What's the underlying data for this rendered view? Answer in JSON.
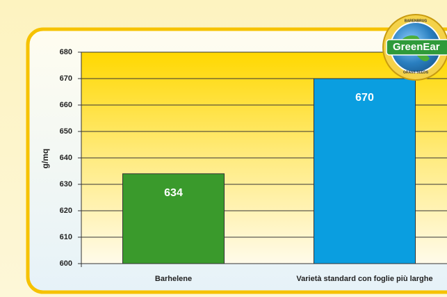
{
  "chart_data": {
    "type": "bar",
    "y_label": "g/mq",
    "categories": [
      "Barhelene",
      "Varietà standard con foglie più larghe"
    ],
    "values": [
      634,
      670
    ],
    "colors": [
      "#3a9a2c",
      "#0a9ee0"
    ],
    "ylim": [
      600,
      680
    ],
    "yticks": [
      600,
      610,
      620,
      630,
      640,
      650,
      660,
      670,
      680
    ],
    "grid": true,
    "logo": {
      "brand": "BARENBRUG",
      "name": "GreenEar",
      "tagline": "GRASS SEEDS"
    }
  }
}
